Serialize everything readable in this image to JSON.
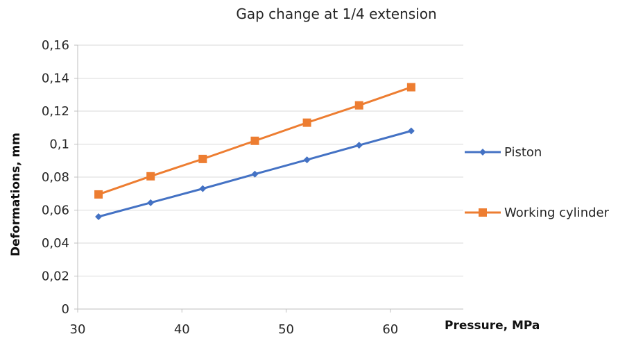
{
  "chart_data": {
    "type": "line",
    "title": "Gap change at 1/4 extension",
    "xlabel": "Pressure, MPa",
    "ylabel": "Deformations, mm",
    "xlim": [
      30,
      67
    ],
    "ylim": [
      0,
      0.16
    ],
    "x_ticks": [
      30,
      40,
      50,
      60
    ],
    "x_tick_labels": [
      "30",
      "40",
      "50",
      "60"
    ],
    "y_ticks": [
      0,
      0.02,
      0.04,
      0.06,
      0.08,
      0.1,
      0.12,
      0.14,
      0.16
    ],
    "y_tick_labels": [
      "0",
      "0,02",
      "0,04",
      "0,06",
      "0,08",
      "0,1",
      "0,12",
      "0,14",
      "0,16"
    ],
    "grid": "horizontal",
    "legend_position": "right",
    "x": [
      32,
      37,
      42,
      47,
      52,
      57,
      62
    ],
    "series": [
      {
        "name": "Piston",
        "color": "#4472C4",
        "marker": "diamond",
        "values": [
          0.056,
          0.0645,
          0.073,
          0.0818,
          0.0905,
          0.0993,
          0.108
        ]
      },
      {
        "name": "Working cylinder",
        "color": "#ED7D31",
        "marker": "square",
        "values": [
          0.0695,
          0.0805,
          0.091,
          0.102,
          0.113,
          0.1235,
          0.1345
        ]
      }
    ]
  }
}
